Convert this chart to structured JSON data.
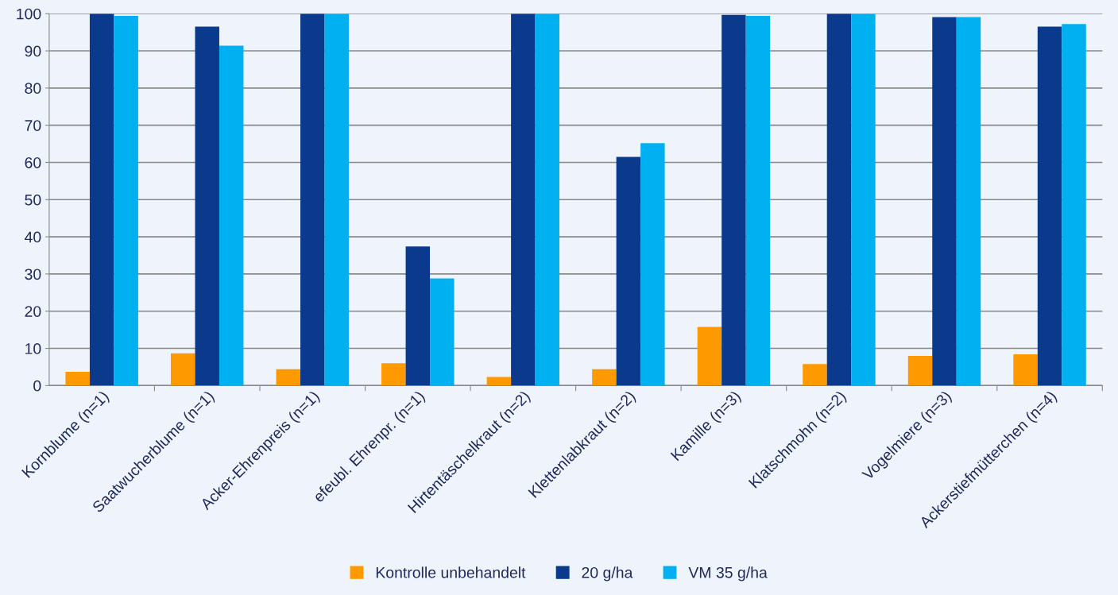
{
  "chart_data": {
    "type": "bar",
    "categories": [
      "Kornblume (n=1)",
      "Saatwucherblume (n=1)",
      "Acker-Ehrenpreis (n=1)",
      "efeubl. Ehrenpr. (n=1)",
      "Hirtentäschelkraut (n=2)",
      "Klettenlabkraut (n=2)",
      "Kamille (n=3)",
      "Klatschmohn (n=2)",
      "Vogelmiere (n=3)",
      "Ackerstiefmütterchen (n=4)"
    ],
    "series": [
      {
        "name": "Kontrolle unbehandelt",
        "color": "#ff9900",
        "values": [
          3.7,
          8.7,
          4.4,
          6.0,
          2.3,
          4.4,
          15.8,
          5.8,
          8.0,
          8.4
        ]
      },
      {
        "name": "20 g/ha",
        "color": "#0b3a8c",
        "values": [
          100,
          96.5,
          100,
          37.4,
          100,
          61.5,
          99.7,
          100,
          99.1,
          96.5
        ]
      },
      {
        "name": "VM 35 g/ha",
        "color": "#00b0f0",
        "values": [
          99.4,
          91.4,
          100,
          28.8,
          100,
          65.2,
          99.4,
          100,
          99.1,
          97.2
        ]
      }
    ],
    "ylim": [
      0,
      100
    ],
    "yticks": [
      0,
      10,
      20,
      30,
      40,
      50,
      60,
      70,
      80,
      90,
      100
    ],
    "grid": "y",
    "legend": "bottom"
  }
}
